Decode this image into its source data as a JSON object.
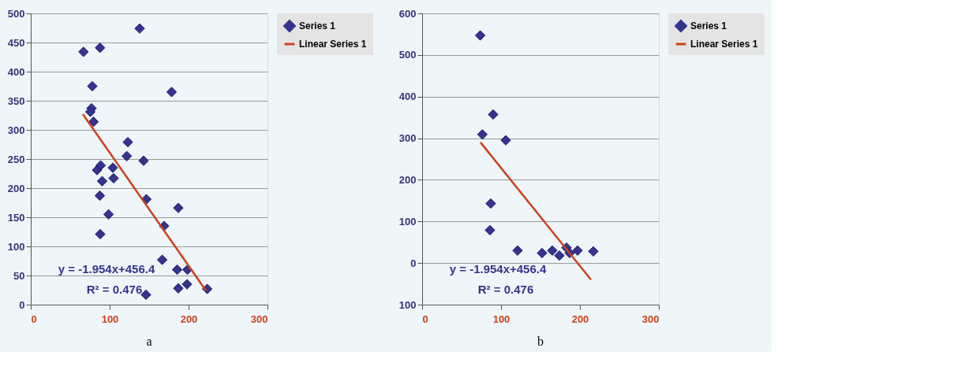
{
  "chart_data": [
    {
      "type": "scatter",
      "title": "a",
      "xlim": [
        0,
        300
      ],
      "xticks": [
        0,
        100,
        200,
        300
      ],
      "ylim": [
        0,
        500
      ],
      "yticks": [
        0,
        50,
        100,
        150,
        200,
        250,
        300,
        350,
        400,
        450,
        500
      ],
      "grid": "y",
      "legend": "right",
      "annotations": [
        "y = -1.954x+456.4",
        "R² = 0.476"
      ],
      "series": [
        {
          "name": "Series 1",
          "color": "#34348f",
          "marker": "diamond",
          "x": [
            66.8,
            87.8,
            138,
            78,
            178.5,
            77,
            75.5,
            79.6,
            123,
            121.7,
            143,
            84,
            88.6,
            104,
            105,
            90.5,
            87.5,
            146.5,
            187,
            98.6,
            169,
            88,
            166.6,
            185.6,
            198.6,
            187,
            198,
            223.6,
            146
          ],
          "values": [
            434,
            441,
            474,
            375,
            365,
            337,
            331,
            314,
            279,
            255,
            247,
            231,
            239,
            235,
            217,
            212,
            187,
            181,
            166,
            155,
            135,
            121,
            77,
            60,
            60,
            28,
            35,
            27,
            17
          ]
        },
        {
          "name": "Linear Series 1",
          "type": "line",
          "marker": "none",
          "color": "#d0401c",
          "x": [
            66,
            222
          ],
          "values": [
            327,
            24
          ]
        }
      ]
    },
    {
      "type": "scatter",
      "title": "b",
      "xlim": [
        0,
        300
      ],
      "xticks": [
        0,
        100,
        200,
        300
      ],
      "ylim": [
        -100,
        600
      ],
      "yticks": [
        {
          "value": -100,
          "label": "100"
        },
        0,
        100,
        200,
        300,
        400,
        500,
        600
      ],
      "grid": "y",
      "legend": "right",
      "annotations": [
        "y = -1.954x+456.4",
        "R² = 0.476"
      ],
      "series": [
        {
          "name": "Series 1",
          "color": "#34348f",
          "marker": "diamond",
          "x": [
            73.6,
            90,
            76.4,
            106,
            87,
            86,
            121,
            152,
            165,
            174,
            183,
            187,
            197,
            217
          ],
          "values": [
            547,
            357,
            309,
            295,
            143,
            79,
            30,
            24,
            30,
            18,
            37,
            24,
            30,
            28
          ]
        },
        {
          "name": "Linear Series 1",
          "type": "line",
          "marker": "none",
          "color": "#d0401c",
          "x": [
            74,
            214
          ],
          "values": [
            290,
            -40
          ]
        }
      ]
    }
  ]
}
